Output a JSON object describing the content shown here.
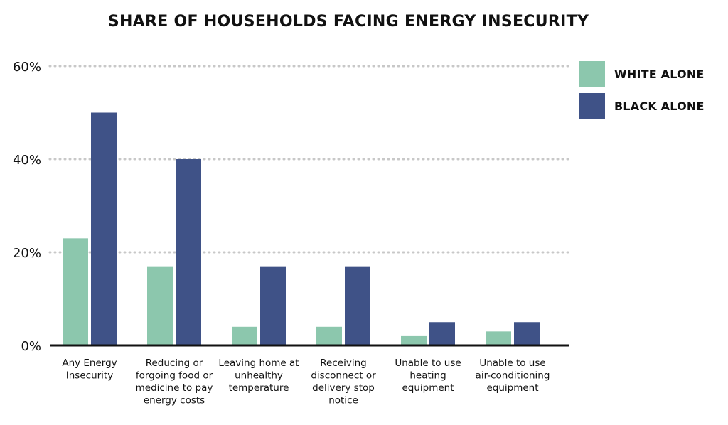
{
  "chart_data": {
    "type": "bar",
    "title": "SHARE OF HOUSEHOLDS FACING ENERGY INSECURITY",
    "categories": [
      [
        "Any Energy",
        "Insecurity"
      ],
      [
        "Reducing or",
        "forgoing food or",
        "medicine to pay",
        "energy costs"
      ],
      [
        "Leaving home at",
        "unhealthy",
        "temperature"
      ],
      [
        "Receiving",
        "disconnect or",
        "delivery stop",
        "notice"
      ],
      [
        "Unable to use",
        "heating",
        "equipment"
      ],
      [
        "Unable to use",
        "air-conditioning",
        "equipment"
      ]
    ],
    "series": [
      {
        "name": "WHITE ALONE",
        "color": "#8cc7ad",
        "values": [
          23,
          17,
          4,
          4,
          2,
          3
        ]
      },
      {
        "name": "BLACK ALONE",
        "color": "#3f5287",
        "values": [
          50,
          40,
          17,
          17,
          5,
          5
        ]
      }
    ],
    "ylim": [
      0,
      60
    ],
    "yticks": [
      "0%",
      "20%",
      "40%",
      "60%"
    ],
    "ytick_values": [
      0,
      20,
      40,
      60
    ],
    "grid": true,
    "legend_position": "top-right"
  }
}
